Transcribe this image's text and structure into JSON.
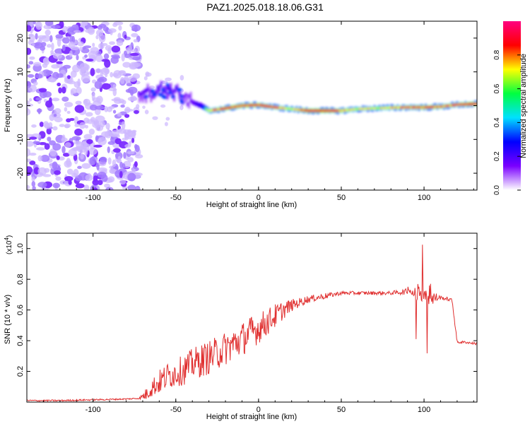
{
  "title": "PAZ1.2025.018.18.06.G31",
  "chart_data": [
    {
      "type": "heatmap",
      "xlabel": "Height of straight line (km)",
      "ylabel": "Frequency (Hz)",
      "xlim": [
        -140,
        132
      ],
      "ylim": [
        -25,
        25
      ],
      "xticks": [
        -100,
        -50,
        0,
        50,
        100
      ],
      "yticks": [
        -20,
        -10,
        0,
        10,
        20
      ],
      "colorbar": {
        "label": "Normalized spectral amplitude",
        "range": [
          0,
          1
        ],
        "ticks": [
          "0.0",
          "0.2",
          "0.4",
          "0.6",
          "0.8"
        ],
        "colors": [
          "#ffffff",
          "#7a00ff",
          "#0000ff",
          "#00e0ff",
          "#00ff40",
          "#ffff00",
          "#ff0000",
          "#ff0080"
        ]
      },
      "ridge": {
        "description_points_x": [
          -72,
          -65,
          -58,
          -50,
          -45,
          -40,
          -35,
          -30,
          -20,
          -10,
          0,
          10,
          20,
          30,
          40,
          50,
          60,
          70,
          80,
          90,
          100,
          110,
          120,
          130
        ],
        "frequency_hz": [
          3,
          4,
          5,
          4,
          2,
          1,
          0,
          -1.5,
          -0.8,
          0,
          0.2,
          -0.5,
          -1,
          -1.5,
          -1.5,
          -1.5,
          -1,
          -0.8,
          -0.6,
          -0.5,
          -0.5,
          -0.3,
          0.3,
          0.5
        ],
        "peak_amplitude": [
          0.3,
          0.35,
          0.4,
          0.35,
          0.25,
          0.3,
          0.45,
          0.8,
          0.9,
          0.9,
          0.9,
          0.85,
          0.75,
          0.95,
          0.95,
          0.85,
          0.75,
          0.75,
          0.8,
          0.85,
          0.9,
          0.85,
          0.85,
          0.95
        ]
      },
      "noise_region_x": [
        -140,
        -72
      ]
    },
    {
      "type": "line",
      "xlabel": "Height of straight line (km)",
      "ylabel": "SNR (10 * v/v)",
      "y_scale_note": "(x10",
      "y_scale_exp": "4",
      "xlim": [
        -140,
        132
      ],
      "ylim": [
        0,
        1.1
      ],
      "xticks": [
        -100,
        -50,
        0,
        50,
        100
      ],
      "yticks": [
        "0.2",
        "0.4",
        "0.6",
        "0.8",
        "1.0"
      ],
      "color": "#e03030",
      "x": [
        -140,
        -120,
        -100,
        -80,
        -72,
        -68,
        -65,
        -60,
        -55,
        -50,
        -45,
        -40,
        -35,
        -30,
        -25,
        -20,
        -15,
        -10,
        -5,
        0,
        5,
        10,
        15,
        20,
        25,
        30,
        35,
        40,
        45,
        50,
        60,
        70,
        80,
        90,
        93,
        95,
        97,
        99,
        100,
        102,
        105,
        110,
        115,
        117,
        120,
        125,
        132
      ],
      "y": [
        0.01,
        0.01,
        0.015,
        0.02,
        0.025,
        0.05,
        0.09,
        0.13,
        0.17,
        0.19,
        0.21,
        0.25,
        0.27,
        0.29,
        0.32,
        0.35,
        0.38,
        0.41,
        0.45,
        0.48,
        0.52,
        0.56,
        0.6,
        0.63,
        0.65,
        0.67,
        0.68,
        0.69,
        0.7,
        0.71,
        0.71,
        0.71,
        0.71,
        0.72,
        0.74,
        0.7,
        0.72,
        0.68,
        0.7,
        0.68,
        0.68,
        0.68,
        0.67,
        0.66,
        0.39,
        0.39,
        0.38
      ],
      "noise_amplitude": [
        0.005,
        0.005,
        0.005,
        0.005,
        0.005,
        0.04,
        0.06,
        0.08,
        0.09,
        0.09,
        0.1,
        0.1,
        0.11,
        0.11,
        0.11,
        0.11,
        0.11,
        0.11,
        0.11,
        0.1,
        0.09,
        0.08,
        0.06,
        0.04,
        0.03,
        0.025,
        0.02,
        0.02,
        0.015,
        0.012,
        0.012,
        0.012,
        0.012,
        0.02,
        0.3,
        0.25,
        0.3,
        0.3,
        0.25,
        0.25,
        0.05,
        0.012,
        0.012,
        0.012,
        0.01,
        0.008,
        0.008
      ]
    }
  ]
}
